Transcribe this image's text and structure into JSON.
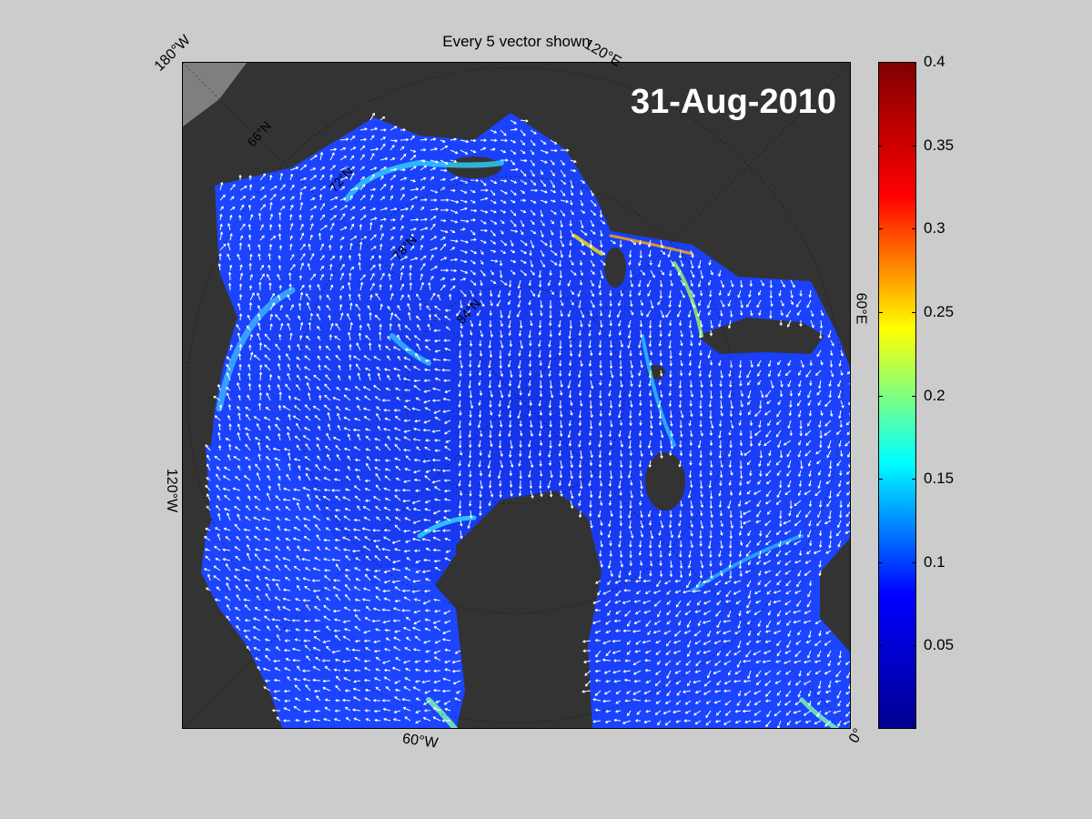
{
  "title": "Every 5 vector shown",
  "date": "31-Aug-2010",
  "longitude_labels": {
    "w180": "180°W",
    "e120": "120°E",
    "e60": "60°E",
    "w120": "120°W",
    "w60": "60°W",
    "zero": "0°"
  },
  "latitude_labels": [
    "66°N",
    "72°N",
    "78°N",
    "84°N"
  ],
  "colorbar": {
    "min": 0.0,
    "max": 0.4,
    "ticks": [
      "0.4",
      "0.35",
      "0.3",
      "0.25",
      "0.2",
      "0.15",
      "0.1",
      "0.05"
    ],
    "tick_values": [
      0.4,
      0.35,
      0.3,
      0.25,
      0.2,
      0.15,
      0.1,
      0.05
    ],
    "colormap": "jet",
    "colors": [
      "#00008f",
      "#0000ff",
      "#00ffff",
      "#ffff00",
      "#ff0000",
      "#800000"
    ]
  },
  "colors": {
    "ocean_ice": "#1c3bf5",
    "land": "#333333",
    "outside": "#7f7f7f",
    "vectors": "#ffffff"
  }
}
